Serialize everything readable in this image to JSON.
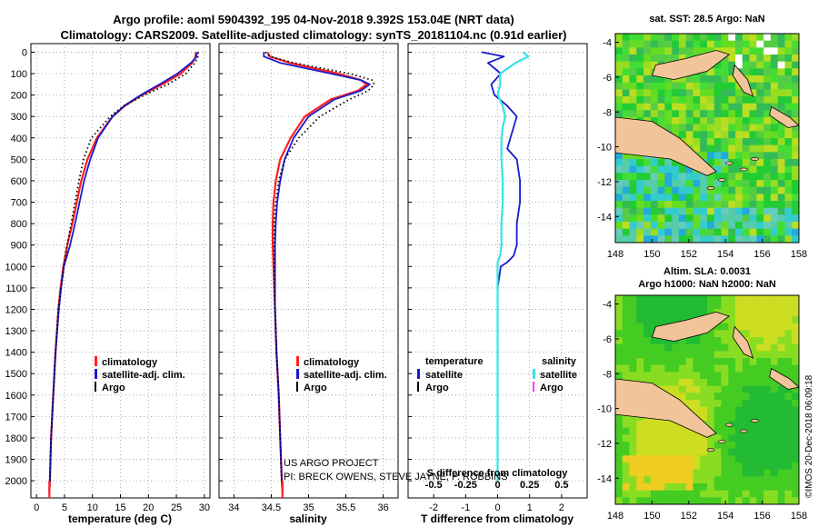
{
  "header": {
    "line1": "Argo profile: aoml 5904392_195 04-Nov-2018 9.392S 153.04E (NRT data)",
    "line2": "Climatology: CARS2009. Satellite-adjusted climatology: synTS_20181104.nc (0.91d earlier)"
  },
  "colors": {
    "climatology": "#ff2020",
    "satellite": "#1a1acc",
    "argo": "#000000",
    "sal_satellite": "#33e5e5",
    "sal_argo": "#ff33ff"
  },
  "chart_data": [
    {
      "type": "line",
      "id": "temperature",
      "xlabel": "temperature (deg C)",
      "xlim": [
        -1,
        31
      ],
      "ylim": [
        2080,
        -40
      ],
      "xticks": [
        "0",
        "5",
        "10",
        "15",
        "20",
        "25",
        "30"
      ],
      "yticks": [
        "0",
        "100",
        "200",
        "300",
        "400",
        "500",
        "600",
        "700",
        "800",
        "900",
        "1000",
        "1100",
        "1200",
        "1300",
        "1400",
        "1500",
        "1600",
        "1700",
        "1800",
        "1900",
        "2000"
      ],
      "depth": [
        0,
        25,
        50,
        100,
        150,
        200,
        250,
        300,
        400,
        500,
        600,
        700,
        800,
        900,
        1000,
        1100,
        1200,
        1400,
        1600,
        1800,
        2000,
        2050
      ],
      "series": [
        {
          "name": "climatology",
          "values": [
            28.5,
            28.4,
            27.8,
            25.8,
            22.5,
            18.8,
            15.8,
            13.6,
            10.8,
            9.1,
            8.0,
            7.2,
            6.4,
            5.5,
            4.8,
            4.3,
            3.9,
            3.4,
            3.0,
            2.6,
            2.4,
            2.3
          ]
        },
        {
          "name": "satellite-adj. clim.",
          "values": [
            28.7,
            28.5,
            27.6,
            25.2,
            22.0,
            18.6,
            15.7,
            13.6,
            11.0,
            9.6,
            8.5,
            7.7,
            6.9,
            6.0,
            4.9,
            4.4,
            4.0,
            3.4,
            3.0,
            2.6,
            2.4,
            2.3
          ]
        },
        {
          "name": "Argo",
          "values": [
            28.9,
            28.8,
            28.3,
            26.7,
            23.5,
            19.3,
            15.6,
            13.2,
            9.8,
            8.4,
            7.6,
            6.9,
            6.2,
            5.5,
            4.9,
            4.4,
            3.9,
            3.4,
            3.0,
            2.6,
            2.4,
            2.3
          ]
        }
      ],
      "legend": [
        "climatology",
        "satellite-adj. clim.",
        "Argo"
      ]
    },
    {
      "type": "line",
      "id": "salinity",
      "xlabel": "salinity",
      "xlim": [
        33.8,
        36.2
      ],
      "ylim": [
        2080,
        -40
      ],
      "xticks": [
        "34",
        "34.5",
        "35",
        "35.5",
        "36"
      ],
      "depth": [
        0,
        20,
        50,
        100,
        130,
        150,
        180,
        220,
        300,
        400,
        500,
        600,
        700,
        800,
        900,
        1000,
        1100,
        1200,
        1400,
        1600,
        1800,
        2000,
        2050
      ],
      "series": [
        {
          "name": "climatology",
          "values": [
            34.45,
            34.48,
            34.75,
            35.4,
            35.7,
            35.78,
            35.66,
            35.3,
            34.95,
            34.76,
            34.62,
            34.56,
            34.53,
            34.52,
            34.52,
            34.53,
            34.54,
            34.55,
            34.57,
            34.6,
            34.62,
            34.64,
            34.65
          ]
        },
        {
          "name": "satellite-adj. clim.",
          "values": [
            34.4,
            34.4,
            34.62,
            35.3,
            35.7,
            35.82,
            35.7,
            35.35,
            35.0,
            34.8,
            34.68,
            34.62,
            34.58,
            34.56,
            34.55,
            34.55,
            34.55,
            34.55,
            34.57,
            34.6,
            34.62,
            34.64,
            34.65
          ]
        },
        {
          "name": "Argo",
          "values": [
            34.42,
            34.48,
            34.8,
            35.55,
            35.85,
            35.88,
            35.8,
            35.55,
            35.15,
            34.87,
            34.68,
            34.6,
            34.56,
            34.54,
            34.54,
            34.54,
            34.54,
            34.55,
            34.57,
            34.6,
            34.62,
            34.64,
            34.65
          ]
        }
      ],
      "legend": [
        "climatology",
        "satellite-adj. clim.",
        "Argo"
      ],
      "credits": [
        "US ARGO PROJECT",
        "PI: BRECK OWENS, STEVE JAYNE, P. ROBBINS"
      ]
    },
    {
      "type": "line",
      "id": "difference",
      "xlabel": "T difference from climatology",
      "xlabel_top": "S difference from climatology",
      "xlim": [
        -2.8,
        2.8
      ],
      "ylim": [
        2080,
        -40
      ],
      "xticks": [
        "-2",
        "-1",
        "0",
        "1",
        "2"
      ],
      "xticks_top": [
        "-0.5",
        "-0.25",
        "0",
        "0.25",
        "0.5"
      ],
      "depth": [
        0,
        20,
        50,
        100,
        150,
        200,
        250,
        300,
        350,
        400,
        450,
        500,
        600,
        700,
        800,
        900,
        950,
        980,
        1000,
        1100,
        1200,
        1400,
        1600,
        1800,
        2000
      ],
      "series": [
        {
          "name": "temperature satellite",
          "values": [
            -0.5,
            0.2,
            -0.3,
            0.1,
            -0.2,
            -0.1,
            0.3,
            0.6,
            0.5,
            0.4,
            0.3,
            0.6,
            0.7,
            0.7,
            0.6,
            0.6,
            0.5,
            0.3,
            0.1,
            0.0,
            0.0,
            0.0,
            0.0,
            0.0,
            0.0
          ]
        },
        {
          "name": "salinity satellite",
          "values": [
            0.2,
            0.24,
            0.14,
            0.02,
            0.02,
            0.0,
            0.04,
            0.06,
            0.04,
            0.03,
            0.03,
            0.03,
            0.04,
            0.04,
            0.03,
            0.03,
            0.02,
            0.0,
            0.0,
            0.0,
            0.0,
            0.0,
            0.0,
            0.0,
            0.0
          ]
        }
      ],
      "legend_left_title": "temperature",
      "legend_right_title": "salinity",
      "legend_items": [
        "satellite",
        "Argo"
      ]
    },
    {
      "type": "heatmap",
      "id": "sst-map",
      "title": "sat. SST: 28.5 Argo: NaN",
      "xticks": [
        "148",
        "150",
        "152",
        "154",
        "156",
        "158"
      ],
      "yticks": [
        "-4",
        "-6",
        "-8",
        "-10",
        "-12",
        "-14"
      ]
    },
    {
      "type": "heatmap",
      "id": "sla-map",
      "title_line1": "Altim. SLA: 0.0031",
      "title_line2": "Argo h1000: NaN h2000: NaN",
      "xticks": [
        "148",
        "150",
        "152",
        "154",
        "156",
        "158"
      ],
      "yticks": [
        "-4",
        "-6",
        "-8",
        "-10",
        "-12",
        "-14"
      ]
    }
  ],
  "footer": {
    "stamp": "©IMOS 20-Dec-2018 06:09:18"
  }
}
